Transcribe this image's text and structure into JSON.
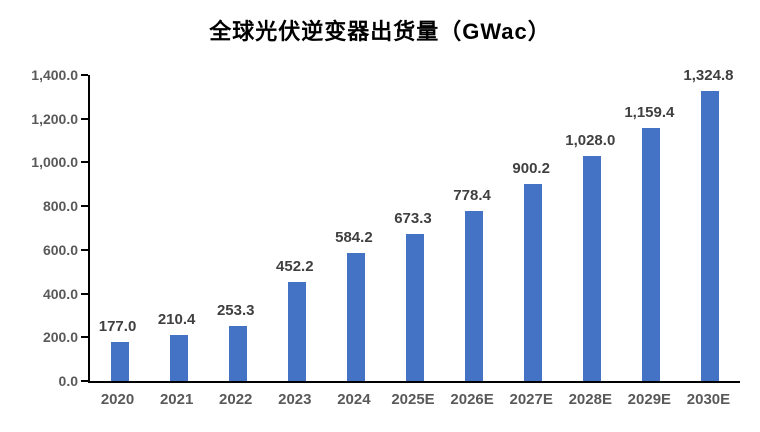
{
  "chart_data": {
    "type": "bar",
    "title": "全球光伏逆变器出货量（GWac）",
    "categories": [
      "2020",
      "2021",
      "2022",
      "2023",
      "2024",
      "2025E",
      "2026E",
      "2027E",
      "2028E",
      "2029E",
      "2030E"
    ],
    "values": [
      177.0,
      210.4,
      253.3,
      452.2,
      584.2,
      673.3,
      778.4,
      900.2,
      1028.0,
      1159.4,
      1324.8
    ],
    "value_labels": [
      "177.0",
      "210.4",
      "253.3",
      "452.2",
      "584.2",
      "673.3",
      "778.4",
      "900.2",
      "1,028.0",
      "1,159.4",
      "1,324.8"
    ],
    "y_tick_values": [
      0,
      200,
      400,
      600,
      800,
      1000,
      1200,
      1400
    ],
    "y_tick_labels": [
      "0.0",
      "200.0",
      "400.0",
      "600.0",
      "800.0",
      "1,000.0",
      "1,200.0",
      "1,400.0"
    ],
    "ylim": [
      0,
      1400
    ],
    "xlabel": "",
    "ylabel": "",
    "grid": false,
    "legend_position": "none",
    "bar_color": "#4472C4",
    "axis_color": "#000000",
    "tick_label_color": "#595959",
    "data_label_color": "#404040",
    "title_color": "#000000",
    "background_color": "#ffffff"
  }
}
